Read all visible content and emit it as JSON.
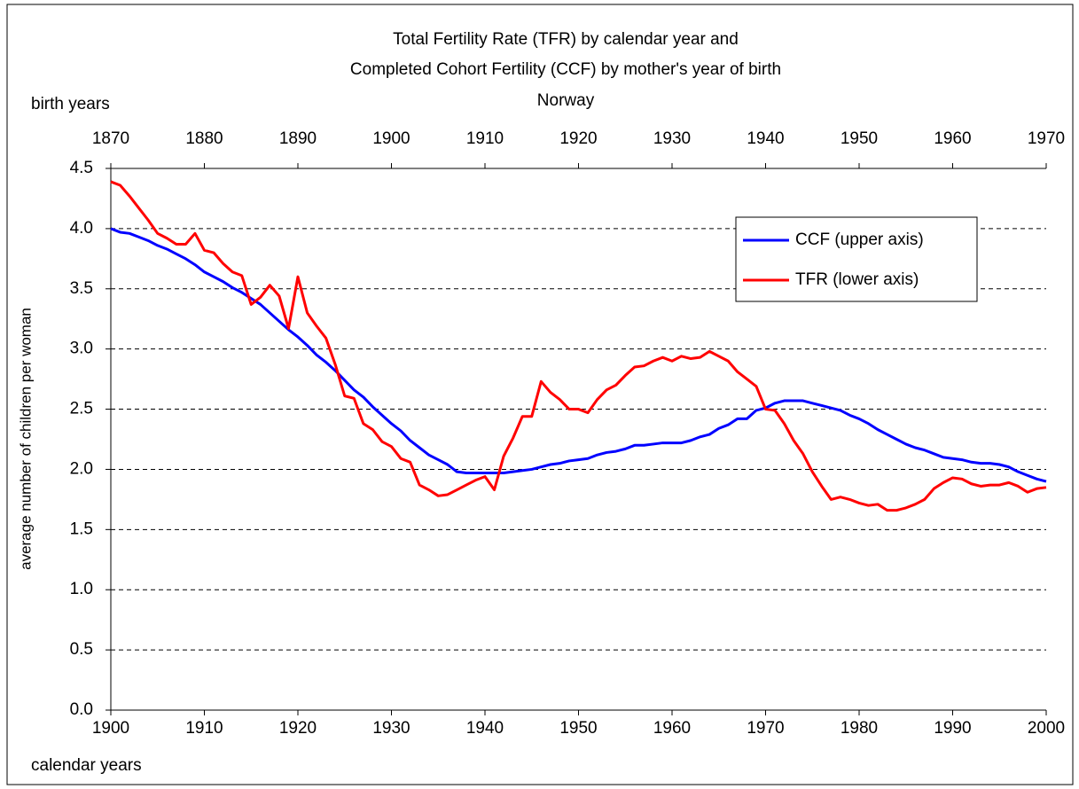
{
  "chart_data": {
    "type": "line",
    "title": [
      "Total Fertility Rate (TFR) by calendar year and",
      "Completed Cohort Fertility (CCF) by mother's year of birth",
      "Norway"
    ],
    "xlabel": "calendar years",
    "x2label": "birth years",
    "ylabel": "average number of children per woman",
    "xlim": [
      1900,
      2000
    ],
    "xticks": [
      1900,
      1910,
      1920,
      1930,
      1940,
      1950,
      1960,
      1970,
      1980,
      1990,
      2000
    ],
    "x2lim": [
      1870,
      1970
    ],
    "x2ticks": [
      1870,
      1880,
      1890,
      1900,
      1910,
      1920,
      1930,
      1940,
      1950,
      1960,
      1970
    ],
    "ylim": [
      0,
      4.5
    ],
    "yticks": [
      {
        "value": 0,
        "label": "0.0"
      },
      0.5,
      {
        "value": 1,
        "label": "1.0"
      },
      1.5,
      {
        "value": 2,
        "label": "2.0"
      },
      2.5,
      {
        "value": 3,
        "label": "3.0"
      },
      3.5,
      {
        "value": 4,
        "label": "4.0"
      },
      4.5
    ],
    "grid": true,
    "legend": "upper right",
    "series": [
      {
        "name": "CCF (upper axis)",
        "color": "#0000ff",
        "axis": "x2",
        "x": [
          1870,
          1871,
          1872,
          1873,
          1874,
          1875,
          1876,
          1877,
          1878,
          1879,
          1880,
          1881,
          1882,
          1883,
          1884,
          1885,
          1886,
          1887,
          1888,
          1889,
          1890,
          1891,
          1892,
          1893,
          1894,
          1895,
          1896,
          1897,
          1898,
          1899,
          1900,
          1901,
          1902,
          1903,
          1904,
          1905,
          1906,
          1907,
          1908,
          1909,
          1910,
          1911,
          1912,
          1913,
          1914,
          1915,
          1916,
          1917,
          1918,
          1919,
          1920,
          1921,
          1922,
          1923,
          1924,
          1925,
          1926,
          1927,
          1928,
          1929,
          1930,
          1931,
          1932,
          1933,
          1934,
          1935,
          1936,
          1937,
          1938,
          1939,
          1940,
          1941,
          1942,
          1943,
          1944,
          1945,
          1946,
          1947,
          1948,
          1949,
          1950,
          1951,
          1952,
          1953,
          1954,
          1955,
          1956,
          1957,
          1958,
          1959,
          1960,
          1961,
          1962,
          1963,
          1964,
          1965,
          1966,
          1967,
          1968,
          1969,
          1970
        ],
        "values": [
          4.0,
          3.97,
          3.96,
          3.93,
          3.9,
          3.86,
          3.83,
          3.79,
          3.75,
          3.7,
          3.64,
          3.6,
          3.56,
          3.51,
          3.47,
          3.42,
          3.37,
          3.3,
          3.23,
          3.16,
          3.1,
          3.03,
          2.95,
          2.89,
          2.82,
          2.74,
          2.66,
          2.6,
          2.52,
          2.45,
          2.38,
          2.32,
          2.24,
          2.18,
          2.12,
          2.08,
          2.04,
          1.98,
          1.97,
          1.97,
          1.97,
          1.97,
          1.97,
          1.98,
          1.99,
          2.0,
          2.02,
          2.04,
          2.05,
          2.07,
          2.08,
          2.09,
          2.12,
          2.14,
          2.15,
          2.17,
          2.2,
          2.2,
          2.21,
          2.22,
          2.22,
          2.22,
          2.24,
          2.27,
          2.29,
          2.34,
          2.37,
          2.42,
          2.42,
          2.49,
          2.51,
          2.55,
          2.57,
          2.57,
          2.57,
          2.55,
          2.53,
          2.51,
          2.49,
          2.45,
          2.42,
          2.38,
          2.33,
          2.29,
          2.25,
          2.21,
          2.18,
          2.16,
          2.13,
          2.1,
          2.09,
          2.08,
          2.06,
          2.05,
          2.05,
          2.04,
          2.02,
          1.98,
          1.95,
          1.92,
          1.9
        ]
      },
      {
        "name": "TFR (lower axis)",
        "color": "#ff0000",
        "x": [
          1900,
          1901,
          1902,
          1903,
          1904,
          1905,
          1906,
          1907,
          1908,
          1909,
          1910,
          1911,
          1912,
          1913,
          1914,
          1915,
          1916,
          1917,
          1918,
          1919,
          1920,
          1921,
          1922,
          1923,
          1924,
          1925,
          1926,
          1927,
          1928,
          1929,
          1930,
          1931,
          1932,
          1933,
          1934,
          1935,
          1936,
          1937,
          1938,
          1939,
          1940,
          1941,
          1942,
          1943,
          1944,
          1945,
          1946,
          1947,
          1948,
          1949,
          1950,
          1951,
          1952,
          1953,
          1954,
          1955,
          1956,
          1957,
          1958,
          1959,
          1960,
          1961,
          1962,
          1963,
          1964,
          1965,
          1966,
          1967,
          1968,
          1969,
          1970,
          1971,
          1972,
          1973,
          1974,
          1975,
          1976,
          1977,
          1978,
          1979,
          1980,
          1981,
          1982,
          1983,
          1984,
          1985,
          1986,
          1987,
          1988,
          1989,
          1990,
          1991,
          1992,
          1993,
          1994,
          1995,
          1996,
          1997,
          1998,
          1999,
          2000
        ],
        "values": [
          4.39,
          4.36,
          4.27,
          4.17,
          4.07,
          3.96,
          3.92,
          3.87,
          3.87,
          3.96,
          3.82,
          3.8,
          3.71,
          3.64,
          3.61,
          3.37,
          3.43,
          3.53,
          3.44,
          3.17,
          3.6,
          3.3,
          3.19,
          3.09,
          2.87,
          2.61,
          2.59,
          2.38,
          2.33,
          2.23,
          2.19,
          2.09,
          2.06,
          1.87,
          1.83,
          1.78,
          1.79,
          1.83,
          1.87,
          1.91,
          1.94,
          1.83,
          2.11,
          2.26,
          2.44,
          2.44,
          2.73,
          2.64,
          2.58,
          2.5,
          2.5,
          2.47,
          2.58,
          2.66,
          2.7,
          2.78,
          2.85,
          2.86,
          2.9,
          2.93,
          2.9,
          2.94,
          2.92,
          2.93,
          2.98,
          2.94,
          2.9,
          2.81,
          2.75,
          2.69,
          2.5,
          2.49,
          2.38,
          2.24,
          2.13,
          1.98,
          1.86,
          1.75,
          1.77,
          1.75,
          1.72,
          1.7,
          1.71,
          1.66,
          1.66,
          1.68,
          1.71,
          1.75,
          1.84,
          1.89,
          1.93,
          1.92,
          1.88,
          1.86,
          1.87,
          1.87,
          1.89,
          1.86,
          1.81,
          1.84,
          1.85
        ]
      }
    ]
  }
}
